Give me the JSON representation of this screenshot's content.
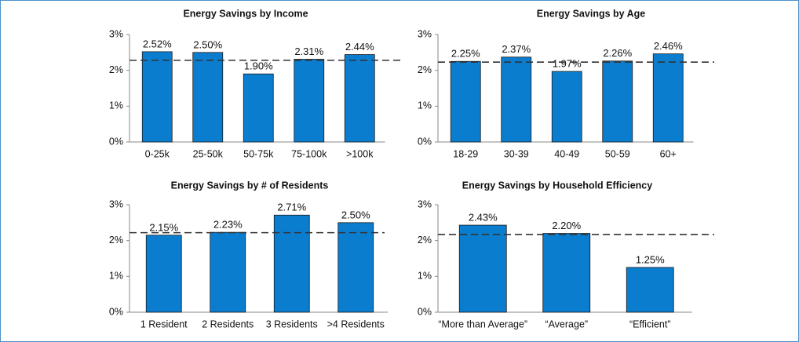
{
  "chart_data": [
    {
      "type": "bar",
      "title": "Energy Savings by Income",
      "categories": [
        "0-25k",
        "25-50k",
        "50-75k",
        "75-100k",
        ">100k"
      ],
      "values": [
        2.52,
        2.5,
        1.9,
        2.31,
        2.44
      ],
      "value_labels": [
        "2.52%",
        "2.50%",
        "1.90%",
        "2.31%",
        "2.44%"
      ],
      "reference_line": 2.28,
      "color": "#0b7dcf",
      "ylim": [
        0,
        3
      ],
      "yticks": [
        {
          "value": 0,
          "label": "0%"
        },
        {
          "value": 1,
          "label": "1%"
        },
        {
          "value": 2,
          "label": "2%"
        },
        {
          "value": 3,
          "label": "3%"
        }
      ]
    },
    {
      "type": "bar",
      "title": "Energy Savings by Age",
      "categories": [
        "18-29",
        "30-39",
        "40-49",
        "50-59",
        "60+"
      ],
      "values": [
        2.25,
        2.37,
        1.97,
        2.26,
        2.46
      ],
      "value_labels": [
        "2.25%",
        "2.37%",
        "1.97%",
        "2.26%",
        "2.46%"
      ],
      "reference_line": 2.23,
      "color": "#0b7dcf",
      "ylim": [
        0,
        3
      ],
      "yticks": [
        {
          "value": 0,
          "label": "0%"
        },
        {
          "value": 1,
          "label": "1%"
        },
        {
          "value": 2,
          "label": "2%"
        },
        {
          "value": 3,
          "label": "3%"
        }
      ]
    },
    {
      "type": "bar",
      "title": "Energy Savings by # of Residents",
      "categories": [
        "1 Resident",
        "2 Residents",
        "3 Residents",
        ">4 Residents"
      ],
      "values": [
        2.15,
        2.23,
        2.71,
        2.5
      ],
      "value_labels": [
        "2.15%",
        "2.23%",
        "2.71%",
        "2.50%"
      ],
      "reference_line": 2.22,
      "color": "#0b7dcf",
      "ylim": [
        0,
        3
      ],
      "yticks": [
        {
          "value": 0,
          "label": "0%"
        },
        {
          "value": 1,
          "label": "1%"
        },
        {
          "value": 2,
          "label": "2%"
        },
        {
          "value": 3,
          "label": "3%"
        }
      ]
    },
    {
      "type": "bar",
      "title": "Energy Savings by Household Efficiency",
      "categories": [
        "“More than Average”",
        "“Average”",
        "“Efficient”"
      ],
      "values": [
        2.43,
        2.2,
        1.25
      ],
      "value_labels": [
        "2.43%",
        "2.20%",
        "1.25%"
      ],
      "reference_line": 2.17,
      "color": "#0b7dcf",
      "ylim": [
        0,
        3
      ],
      "yticks": [
        {
          "value": 0,
          "label": "0%"
        },
        {
          "value": 1,
          "label": "1%"
        },
        {
          "value": 2,
          "label": "2%"
        },
        {
          "value": 3,
          "label": "3%"
        }
      ]
    }
  ]
}
